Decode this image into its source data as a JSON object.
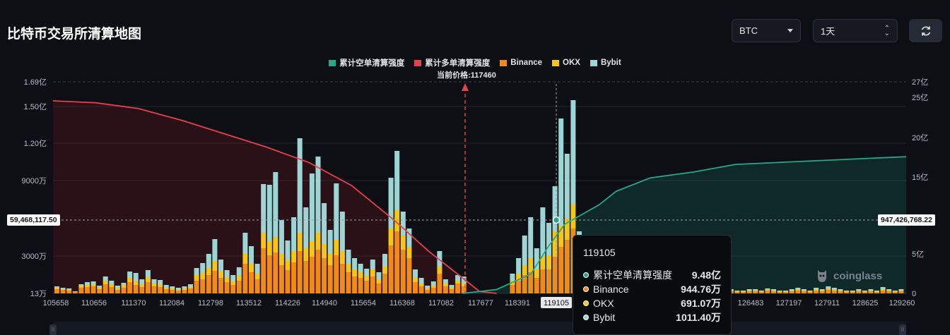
{
  "title": "比特币交易所清算地图",
  "controls": {
    "symbol": "BTC",
    "range": "1天",
    "refresh_icon": "refresh-icon"
  },
  "legend": [
    {
      "label": "累计空单清算强度",
      "color": "#26a88a"
    },
    {
      "label": "累计多单清算强度",
      "color": "#e5414d"
    },
    {
      "label": "Binance",
      "color": "#f08a1a"
    },
    {
      "label": "OKX",
      "color": "#f5c518"
    },
    {
      "label": "Bybit",
      "color": "#9dd4d4"
    }
  ],
  "current_price_note": "当前价格:117460",
  "flags": {
    "left": "59,468,117.50",
    "right": "947,426,768.22"
  },
  "tooltip": {
    "header": "119105",
    "rows": [
      {
        "label": "累计空单清算强度",
        "value": "9.48亿",
        "color": "#26a88a"
      },
      {
        "label": "Binance",
        "value": "944.76万",
        "color": "#f08a1a"
      },
      {
        "label": "OKX",
        "value": "691.07万",
        "color": "#f5c518"
      },
      {
        "label": "Bybit",
        "value": "1011.40万",
        "color": "#9dd4d4"
      }
    ]
  },
  "watermark": "coinglass",
  "chart_data": {
    "type": "bar",
    "x_tick_labels": [
      "105658",
      "110656",
      "111370",
      "112084",
      "112798",
      "113512",
      "114226",
      "114940",
      "115654",
      "116368",
      "117082",
      "117677",
      "118391",
      "119105",
      "126483",
      "127197",
      "127911",
      "128625",
      "129260"
    ],
    "left_axis_ticks": [
      "1.69亿",
      "1.50亿",
      "1.20亿",
      "9000万",
      "3000万",
      "13万"
    ],
    "right_axis_ticks": [
      "27亿",
      "25亿",
      "20亿",
      "15亿",
      "5亿",
      "0"
    ],
    "current_price": 117460,
    "hover_price": 119105,
    "bars": [
      {
        "b": 6,
        "o": 2,
        "y": 2
      },
      {
        "b": 5,
        "o": 1,
        "y": 2
      },
      {
        "b": 4,
        "o": 1,
        "y": 2
      },
      {
        "b": 2,
        "o": 0,
        "y": 1
      },
      {
        "b": 8,
        "o": 3,
        "y": 2
      },
      {
        "b": 9,
        "o": 3,
        "y": 4
      },
      {
        "b": 10,
        "o": 3,
        "y": 4
      },
      {
        "b": 6,
        "o": 2,
        "y": 3
      },
      {
        "b": 13,
        "o": 5,
        "y": 6
      },
      {
        "b": 9,
        "o": 4,
        "y": 5
      },
      {
        "b": 5,
        "o": 2,
        "y": 4
      },
      {
        "b": 8,
        "o": 4,
        "y": 3
      },
      {
        "b": 16,
        "o": 6,
        "y": 9
      },
      {
        "b": 12,
        "o": 5,
        "y": 12
      },
      {
        "b": 9,
        "o": 4,
        "y": 7
      },
      {
        "b": 16,
        "o": 7,
        "y": 10
      },
      {
        "b": 10,
        "o": 4,
        "y": 6
      },
      {
        "b": 9,
        "o": 4,
        "y": 6
      },
      {
        "b": 6,
        "o": 2,
        "y": 4
      },
      {
        "b": 5,
        "o": 2,
        "y": 3
      },
      {
        "b": 4,
        "o": 1,
        "y": 3
      },
      {
        "b": 5,
        "o": 2,
        "y": 3
      },
      {
        "b": 7,
        "o": 2,
        "y": 4
      },
      {
        "b": 18,
        "o": 8,
        "y": 10
      },
      {
        "b": 20,
        "o": 9,
        "y": 14
      },
      {
        "b": 26,
        "o": 10,
        "y": 20
      },
      {
        "b": 32,
        "o": 14,
        "y": 31
      },
      {
        "b": 22,
        "o": 10,
        "y": 16
      },
      {
        "b": 16,
        "o": 7,
        "y": 10
      },
      {
        "b": 12,
        "o": 5,
        "y": 9
      },
      {
        "b": 18,
        "o": 7,
        "y": 12
      },
      {
        "b": 42,
        "o": 14,
        "y": 30
      },
      {
        "b": 30,
        "o": 12,
        "y": 25
      },
      {
        "b": 20,
        "o": 8,
        "y": 14
      },
      {
        "b": 64,
        "o": 22,
        "y": 69
      },
      {
        "b": 54,
        "o": 20,
        "y": 80
      },
      {
        "b": 58,
        "o": 22,
        "y": 92
      },
      {
        "b": 40,
        "o": 16,
        "y": 48
      },
      {
        "b": 33,
        "o": 14,
        "y": 28
      },
      {
        "b": 44,
        "o": 16,
        "y": 48
      },
      {
        "b": 60,
        "o": 26,
        "y": 134
      },
      {
        "b": 46,
        "o": 18,
        "y": 58
      },
      {
        "b": 52,
        "o": 22,
        "y": 96
      },
      {
        "b": 62,
        "o": 24,
        "y": 108
      },
      {
        "b": 50,
        "o": 20,
        "y": 58
      },
      {
        "b": 40,
        "o": 16,
        "y": 34
      },
      {
        "b": 54,
        "o": 22,
        "y": 80
      },
      {
        "b": 42,
        "o": 18,
        "y": 56
      },
      {
        "b": 30,
        "o": 12,
        "y": 20
      },
      {
        "b": 24,
        "o": 10,
        "y": 16
      },
      {
        "b": 22,
        "o": 8,
        "y": 12
      },
      {
        "b": 18,
        "o": 7,
        "y": 10
      },
      {
        "b": 24,
        "o": 10,
        "y": 14
      },
      {
        "b": 14,
        "o": 6,
        "y": 10
      },
      {
        "b": 28,
        "o": 10,
        "y": 18
      },
      {
        "b": 68,
        "o": 24,
        "y": 72
      },
      {
        "b": 88,
        "o": 30,
        "y": 84
      },
      {
        "b": 62,
        "o": 20,
        "y": 34
      },
      {
        "b": 50,
        "o": 16,
        "y": 26
      },
      {
        "b": 16,
        "o": 6,
        "y": 12
      },
      {
        "b": 10,
        "o": 4,
        "y": 8
      },
      {
        "b": 5,
        "o": 2,
        "y": 4
      },
      {
        "b": 8,
        "o": 3,
        "y": 6
      },
      {
        "b": 28,
        "o": 10,
        "y": 22
      },
      {
        "b": 10,
        "o": 4,
        "y": 6
      },
      {
        "b": 6,
        "o": 2,
        "y": 4
      },
      {
        "b": 14,
        "o": 4,
        "y": 8
      },
      {
        "b": 10,
        "o": 4,
        "y": 10
      },
      {
        "b": 0,
        "o": 0,
        "y": 0
      },
      {
        "b": 0,
        "o": 0,
        "y": 0
      },
      {
        "b": 0,
        "o": 0,
        "y": 0
      },
      {
        "b": 0,
        "o": 0,
        "y": 0
      },
      {
        "b": 0,
        "o": 0,
        "y": 0
      },
      {
        "b": 0,
        "o": 0,
        "y": 0
      },
      {
        "b": 0,
        "o": 0,
        "y": 0
      },
      {
        "b": 12,
        "o": 6,
        "y": 10
      },
      {
        "b": 18,
        "o": 10,
        "y": 22
      },
      {
        "b": 26,
        "o": 14,
        "y": 42
      },
      {
        "b": 30,
        "o": 20,
        "y": 58
      },
      {
        "b": 22,
        "o": 12,
        "y": 30
      },
      {
        "b": 34,
        "o": 18,
        "y": 70
      },
      {
        "b": 34,
        "o": 20,
        "y": 46
      },
      {
        "b": 52,
        "o": 36,
        "y": 64
      },
      {
        "b": 66,
        "o": 30,
        "y": 152
      },
      {
        "b": 76,
        "o": 30,
        "y": 92
      },
      {
        "b": 92,
        "o": 34,
        "y": 148
      },
      {
        "b": 36,
        "o": 18,
        "y": 34
      },
      {
        "b": 26,
        "o": 12,
        "y": 16
      },
      {
        "b": 14,
        "o": 6,
        "y": 10
      },
      {
        "b": 16,
        "o": 6,
        "y": 8
      },
      {
        "b": 6,
        "o": 2,
        "y": 4
      },
      {
        "b": 4,
        "o": 2,
        "y": 3
      },
      {
        "b": 6,
        "o": 2,
        "y": 4
      },
      {
        "b": 4,
        "o": 1,
        "y": 3
      },
      {
        "b": 2,
        "o": 1,
        "y": 1
      },
      {
        "b": 2,
        "o": 1,
        "y": 2
      },
      {
        "b": 6,
        "o": 2,
        "y": 8
      },
      {
        "b": 3,
        "o": 1,
        "y": 2
      },
      {
        "b": 0,
        "o": 0,
        "y": 0
      },
      {
        "b": 4,
        "o": 2,
        "y": 3
      },
      {
        "b": 2,
        "o": 1,
        "y": 2
      },
      {
        "b": 2,
        "o": 1,
        "y": 1
      },
      {
        "b": 3,
        "o": 1,
        "y": 2
      },
      {
        "b": 2,
        "o": 1,
        "y": 1
      },
      {
        "b": 2,
        "o": 1,
        "y": 1
      },
      {
        "b": 3,
        "o": 1,
        "y": 2
      },
      {
        "b": 2,
        "o": 1,
        "y": 1
      },
      {
        "b": 3,
        "o": 1,
        "y": 2
      },
      {
        "b": 2,
        "o": 1,
        "y": 1
      },
      {
        "b": 2,
        "o": 1,
        "y": 1
      },
      {
        "b": 3,
        "o": 1,
        "y": 2
      },
      {
        "b": 3,
        "o": 1,
        "y": 2
      },
      {
        "b": 2,
        "o": 1,
        "y": 1
      },
      {
        "b": 2,
        "o": 1,
        "y": 1
      },
      {
        "b": 3,
        "o": 1,
        "y": 2
      },
      {
        "b": 3,
        "o": 1,
        "y": 2
      },
      {
        "b": 2,
        "o": 1,
        "y": 1
      },
      {
        "b": 4,
        "o": 1,
        "y": 2
      },
      {
        "b": 3,
        "o": 1,
        "y": 2
      },
      {
        "b": 2,
        "o": 1,
        "y": 1
      },
      {
        "b": 2,
        "o": 1,
        "y": 1
      },
      {
        "b": 3,
        "o": 1,
        "y": 2
      },
      {
        "b": 4,
        "o": 2,
        "y": 2
      },
      {
        "b": 3,
        "o": 1,
        "y": 2
      },
      {
        "b": 2,
        "o": 1,
        "y": 1
      },
      {
        "b": 4,
        "o": 2,
        "y": 2
      },
      {
        "b": 3,
        "o": 1,
        "y": 2
      },
      {
        "b": 5,
        "o": 2,
        "y": 3
      },
      {
        "b": 4,
        "o": 2,
        "y": 2
      },
      {
        "b": 3,
        "o": 1,
        "y": 2
      },
      {
        "b": 2,
        "o": 1,
        "y": 1
      },
      {
        "b": 2,
        "o": 1,
        "y": 1
      },
      {
        "b": 3,
        "o": 1,
        "y": 2
      },
      {
        "b": 2,
        "o": 1,
        "y": 1
      },
      {
        "b": 3,
        "o": 1,
        "y": 2
      },
      {
        "b": 2,
        "o": 1,
        "y": 1
      },
      {
        "b": 4,
        "o": 2,
        "y": 3
      },
      {
        "b": 3,
        "o": 1,
        "y": 2
      },
      {
        "b": 2,
        "o": 1,
        "y": 1
      },
      {
        "b": 3,
        "o": 1,
        "y": 2
      }
    ],
    "long_curve": [
      [
        0,
        1.0
      ],
      [
        0.05,
        0.99
      ],
      [
        0.1,
        0.96
      ],
      [
        0.15,
        0.9
      ],
      [
        0.2,
        0.83
      ],
      [
        0.25,
        0.76
      ],
      [
        0.3,
        0.68
      ],
      [
        0.35,
        0.56
      ],
      [
        0.4,
        0.38
      ],
      [
        0.44,
        0.22
      ],
      [
        0.48,
        0.08
      ],
      [
        0.5,
        0.01
      ],
      [
        0.52,
        0.0
      ]
    ],
    "short_curve": [
      [
        0.48,
        0.0
      ],
      [
        0.52,
        0.02
      ],
      [
        0.56,
        0.1
      ],
      [
        0.58,
        0.24
      ],
      [
        0.6,
        0.36
      ],
      [
        0.62,
        0.41
      ],
      [
        0.64,
        0.46
      ],
      [
        0.66,
        0.53
      ],
      [
        0.7,
        0.6
      ],
      [
        0.75,
        0.63
      ],
      [
        0.8,
        0.67
      ],
      [
        0.85,
        0.68
      ],
      [
        0.9,
        0.69
      ],
      [
        0.95,
        0.7
      ],
      [
        1.0,
        0.71
      ]
    ]
  }
}
